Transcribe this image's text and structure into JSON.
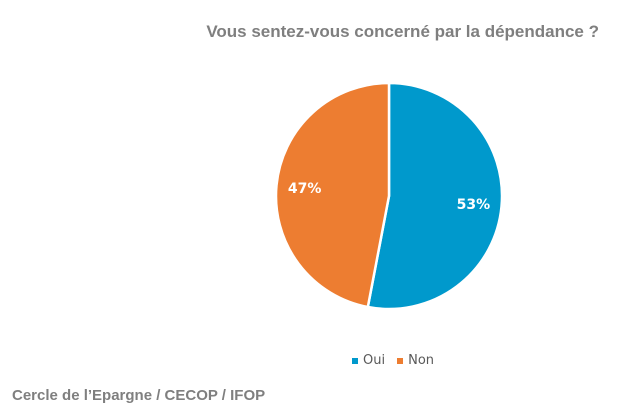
{
  "chart_data": {
    "type": "pie",
    "title": "Vous sentez-vous concerné par la dépendance ?",
    "categories": [
      "Oui",
      "Non"
    ],
    "values": [
      53,
      47
    ],
    "data_labels": [
      "53%",
      "47%"
    ],
    "colors": [
      "#0099CC",
      "#ED7D31"
    ],
    "legend": "bottom"
  },
  "source": "Cercle de l’Epargne / CECOP / IFOP"
}
